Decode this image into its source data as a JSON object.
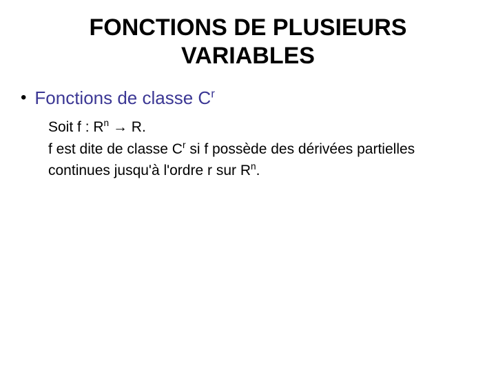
{
  "colors": {
    "background": "#ffffff",
    "text": "#000000",
    "bulletTextColor": "#3b3794"
  },
  "title": {
    "line1": "FONCTIONS DE PLUSIEURS",
    "line2": "VARIABLES"
  },
  "bullet": {
    "dot": "•",
    "prefix": "Fonctions de classe C",
    "sup": "r"
  },
  "body": {
    "l1_a": "Soit f : R",
    "l1_sup": "n",
    "l1_b": " → R.",
    "l2_a": "f est dite de classe C",
    "l2_sup1": "r",
    "l2_b": " si f possède des dérivées partielles",
    "l3_a": "continues jusqu'à l'ordre r sur R",
    "l3_sup": "n",
    "l3_b": "."
  }
}
